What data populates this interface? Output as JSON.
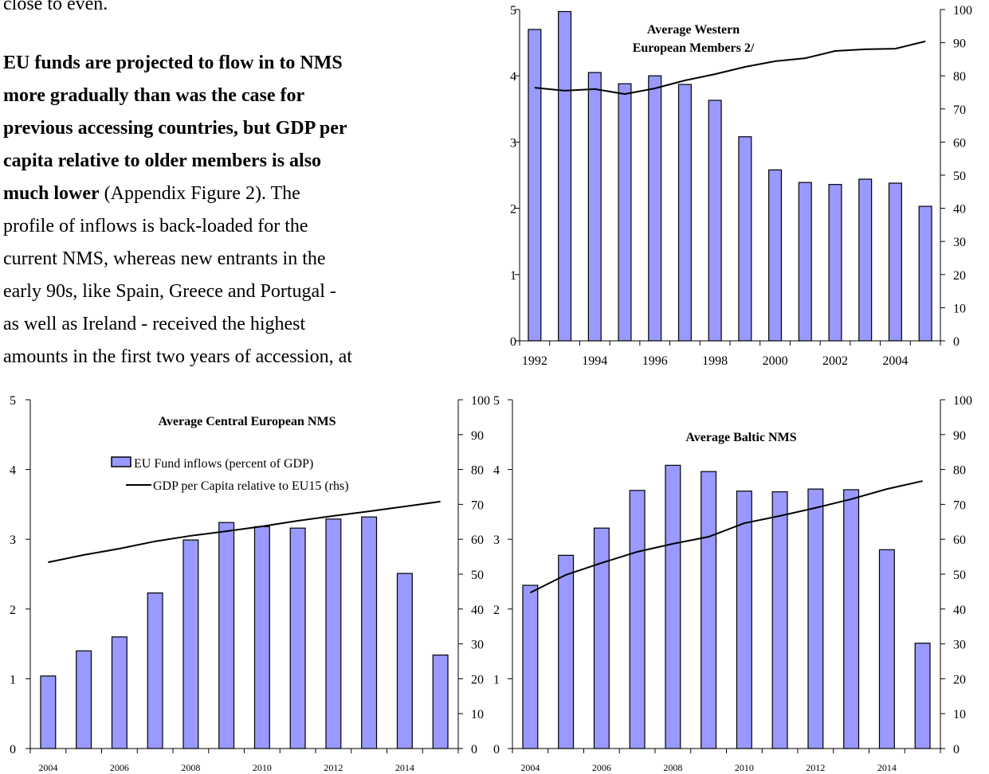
{
  "text": {
    "intro": "close to even.",
    "lead": [
      "EU funds are projected to flow in to NMS",
      "more gradually than was the case for",
      "previous accessing countries, but GDP per",
      "capita relative to older members is also",
      "much lower"
    ],
    "body": [
      "(Appendix Figure 2).  The",
      "profile of inflows is back-loaded for the",
      "current NMS, whereas new entrants in the",
      "early 90s, like Spain, Greece and Portugal -",
      "as well as Ireland - received the highest",
      "amounts in the first two years of accession, at"
    ]
  },
  "chart_data": [
    {
      "type": "bar",
      "title": [
        "Average Western",
        "European Members 2/"
      ],
      "categories": [
        "1992",
        null,
        "1994",
        null,
        "1996",
        null,
        "1998",
        null,
        "2000",
        null,
        "2002",
        null,
        "2004",
        null
      ],
      "series": [
        {
          "type": "bar",
          "color": "#9999ff",
          "values": [
            4.7,
            4.97,
            4.05,
            3.88,
            4.0,
            3.87,
            3.63,
            3.08,
            2.58,
            2.39,
            2.36,
            2.44,
            2.38,
            2.03
          ]
        },
        {
          "type": "line",
          "axis": "y2",
          "color": "#000000",
          "values": [
            76.4,
            75.5,
            76.0,
            74.5,
            76.2,
            78.6,
            80.5,
            82.7,
            84.4,
            85.3,
            87.5,
            88.0,
            88.2,
            90.4
          ]
        }
      ],
      "ylim": [
        0,
        5
      ],
      "yticks": [
        0,
        1,
        2,
        3,
        4,
        5
      ],
      "y2lim": [
        0,
        100
      ],
      "y2ticks": [
        0,
        10,
        20,
        30,
        40,
        50,
        60,
        70,
        80,
        90,
        100
      ]
    },
    {
      "type": "bar",
      "title": [
        "Average Central European NMS"
      ],
      "categories": [
        "2004",
        null,
        "2006",
        null,
        "2008",
        null,
        "2010",
        null,
        "2012",
        null,
        "2014",
        null
      ],
      "series": [
        {
          "type": "bar",
          "name": "EU Fund inflows (percent of GDP)",
          "color": "#9999ff",
          "values": [
            1.04,
            1.4,
            1.6,
            2.23,
            2.99,
            3.24,
            3.18,
            3.16,
            3.29,
            3.32,
            2.51,
            1.34
          ]
        },
        {
          "type": "line",
          "name": "GDP per Capita relative to EU15 (rhs)",
          "axis": "y2",
          "color": "#000000",
          "values": [
            53.4,
            55.5,
            57.3,
            59.4,
            61.0,
            62.3,
            63.7,
            65.3,
            66.7,
            68.0,
            69.4,
            70.8
          ]
        }
      ],
      "ylim": [
        0,
        5
      ],
      "yticks": [
        0,
        1,
        2,
        3,
        4,
        5
      ],
      "y2lim": [
        0,
        100
      ],
      "y2ticks": [
        0,
        10,
        20,
        30,
        40,
        50,
        60,
        70,
        80,
        90,
        100
      ]
    },
    {
      "type": "bar",
      "title": [
        "Average Baltic NMS"
      ],
      "categories": [
        "2004",
        null,
        "2006",
        null,
        "2008",
        null,
        "2010",
        null,
        "2012",
        null,
        "2014",
        null
      ],
      "series": [
        {
          "type": "bar",
          "color": "#9999ff",
          "values": [
            2.34,
            2.77,
            3.16,
            3.7,
            4.06,
            3.97,
            3.69,
            3.68,
            3.72,
            3.71,
            2.85,
            1.51
          ]
        },
        {
          "type": "line",
          "axis": "y2",
          "color": "#000000",
          "values": [
            44.7,
            49.8,
            53.2,
            56.4,
            58.7,
            60.7,
            64.6,
            66.7,
            69.0,
            71.5,
            74.4,
            76.7
          ]
        }
      ],
      "ylim": [
        0,
        5
      ],
      "yticks": [
        0,
        1,
        2,
        3,
        4,
        5
      ],
      "y2lim": [
        0,
        100
      ],
      "y2ticks": [
        0,
        10,
        20,
        30,
        40,
        50,
        60,
        70,
        80,
        90,
        100
      ]
    }
  ]
}
